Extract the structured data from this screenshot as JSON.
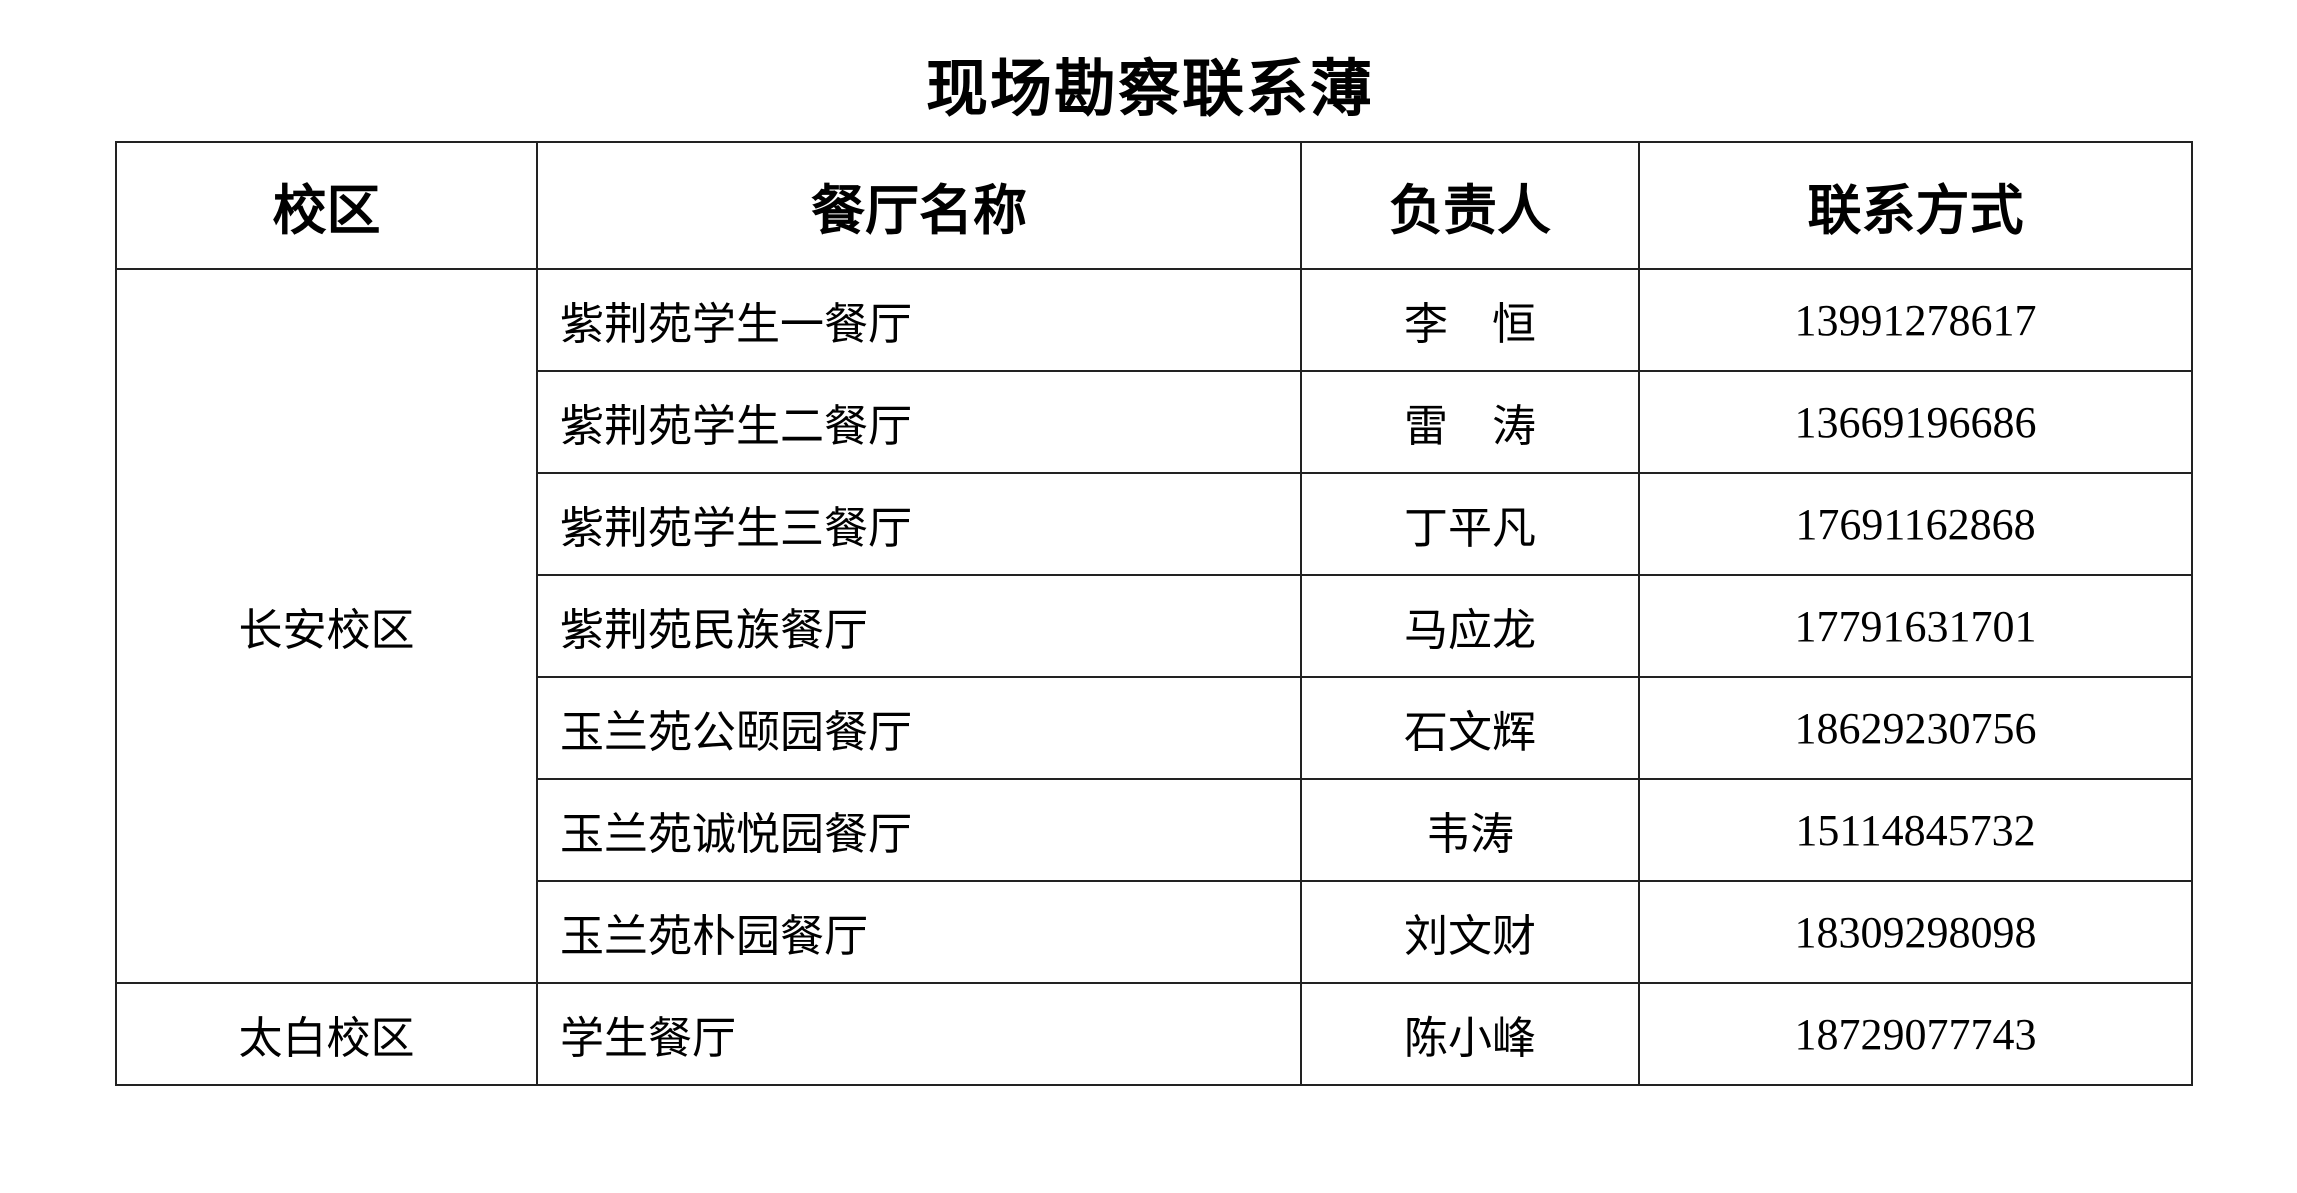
{
  "title": "现场勘察联系薄",
  "headers": [
    "校区",
    "餐厅名称",
    "负责人",
    "联系方式"
  ],
  "rows": [
    {
      "campus": "长安校区",
      "restaurant": "紫荆苑学生一餐厅",
      "person": "李　恒",
      "phone": "13991278617"
    },
    {
      "campus": "长安校区",
      "restaurant": "紫荆苑学生二餐厅",
      "person": "雷　涛",
      "phone": "13669196686"
    },
    {
      "campus": "长安校区",
      "restaurant": "紫荆苑学生三餐厅",
      "person": "丁平凡",
      "phone": "17691162868"
    },
    {
      "campus": "长安校区",
      "restaurant": "紫荆苑民族餐厅",
      "person": "马应龙",
      "phone": "17791631701"
    },
    {
      "campus": "长安校区",
      "restaurant": "玉兰苑公颐园餐厅",
      "person": "石文辉",
      "phone": "18629230756"
    },
    {
      "campus": "长安校区",
      "restaurant": "玉兰苑诚悦园餐厅",
      "person": "韦涛",
      "phone": "15114845732"
    },
    {
      "campus": "长安校区",
      "restaurant": "玉兰苑朴园餐厅",
      "person": "刘文财",
      "phone": "18309298098"
    },
    {
      "campus": "太白校区",
      "restaurant": "学生餐厅",
      "person": "陈小峰",
      "phone": "18729077743"
    }
  ]
}
